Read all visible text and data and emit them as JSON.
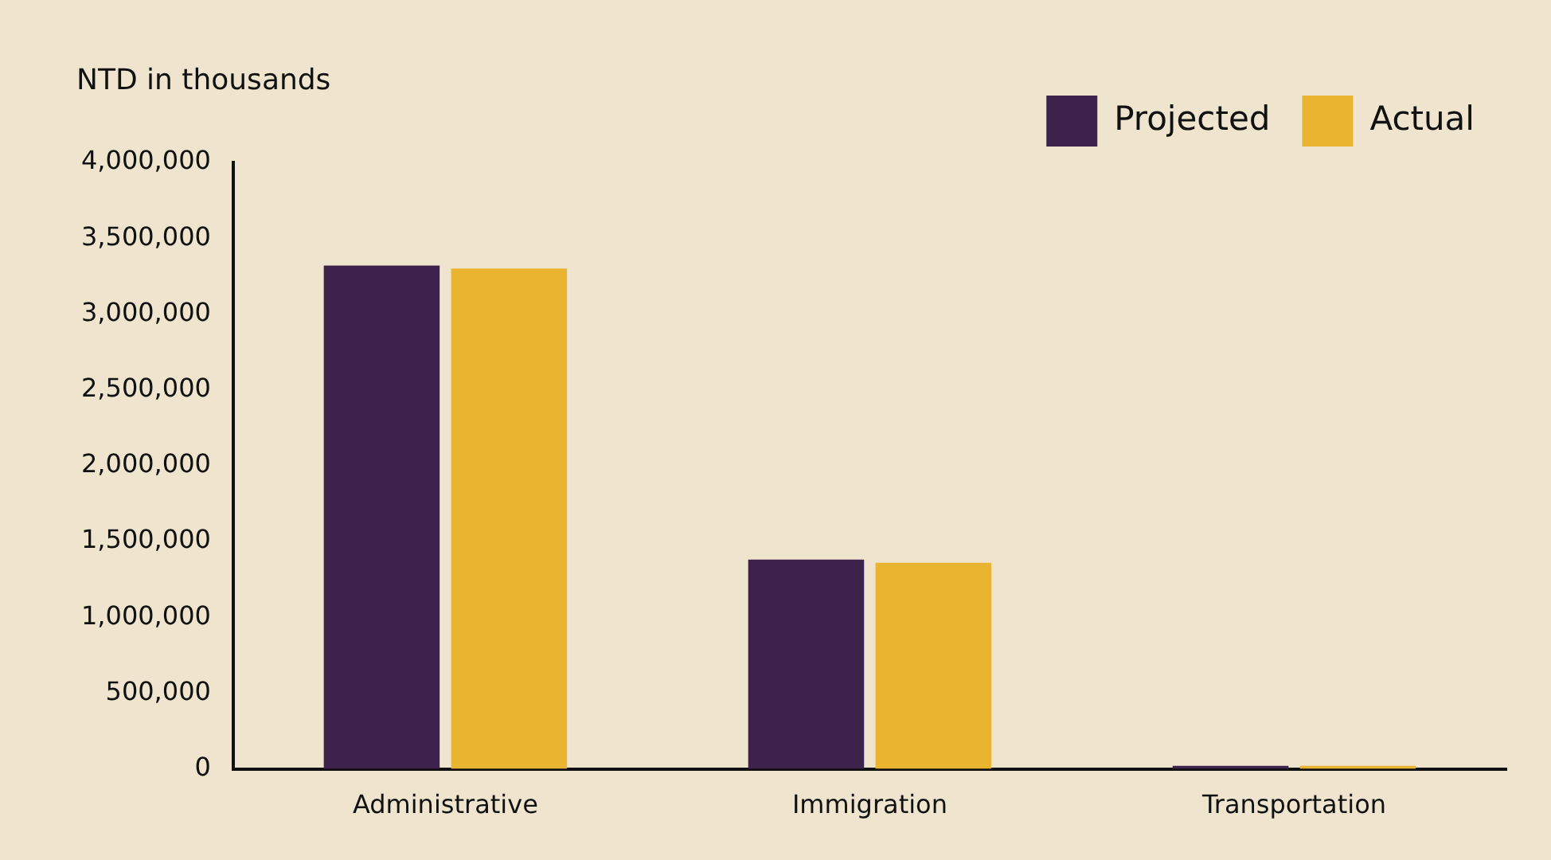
{
  "chart_data": {
    "type": "bar",
    "ylabel": "NTD in thousands",
    "categories": [
      "Administrative",
      "Immigration",
      "Transportation"
    ],
    "series": [
      {
        "name": "Projected",
        "color": "#3d224b",
        "values": [
          3320000,
          1380000,
          20000
        ]
      },
      {
        "name": "Actual",
        "color": "#e9b430",
        "values": [
          3300000,
          1360000,
          20000
        ]
      }
    ],
    "ylim": [
      0,
      4000000
    ],
    "yticks": [
      0,
      {
        "value": 500000,
        "label": "500,000"
      },
      {
        "value": 1000000,
        "label": "1,000,000"
      },
      {
        "value": 1500000,
        "label": "1,500,000"
      },
      {
        "value": 2000000,
        "label": "2,000,000"
      },
      {
        "value": 2500000,
        "label": "2,500,000"
      },
      {
        "value": 3000000,
        "label": "3,000,000"
      },
      {
        "value": 3500000,
        "label": "3,500,000"
      },
      {
        "value": 4000000,
        "label": "4,000,000"
      }
    ],
    "grid": false,
    "legend": "top right"
  }
}
